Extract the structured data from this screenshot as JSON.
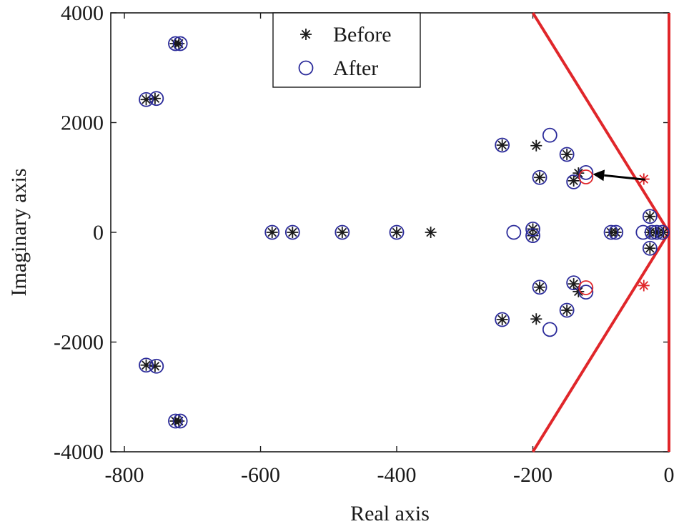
{
  "chart_data": {
    "type": "scatter",
    "xlabel": "Real axis",
    "ylabel": "Imaginary axis",
    "xlim": [
      -820,
      0
    ],
    "ylim": [
      -4000,
      4000
    ],
    "x_ticks": [
      -800,
      -600,
      -400,
      -200,
      0
    ],
    "x_tick_labels": [
      "-800",
      "-600",
      "-400",
      "-200",
      "0"
    ],
    "y_ticks": [
      -4000,
      -2000,
      0,
      2000,
      4000
    ],
    "y_tick_labels": [
      "-4000",
      "-2000",
      "0",
      "2000",
      "4000"
    ],
    "legend": {
      "placement": "top-center",
      "entries": [
        {
          "label": "Before",
          "marker": "asterisk",
          "color": "#1a1a1a"
        },
        {
          "label": "After",
          "marker": "circle",
          "color": "#2b2b9a"
        }
      ]
    },
    "colors": {
      "before": "#1a1a1a",
      "after": "#2b2b9a",
      "highlight": "#e0262a",
      "boundary": "#e0262a",
      "arrow": "#000000"
    },
    "series": [
      {
        "name": "Before",
        "marker": "asterisk",
        "points": [
          [
            -725,
            3440
          ],
          [
            -720,
            3440
          ],
          [
            -768,
            2420
          ],
          [
            -755,
            2440
          ],
          [
            -768,
            -2420
          ],
          [
            -755,
            -2440
          ],
          [
            -725,
            -3440
          ],
          [
            -720,
            -3440
          ],
          [
            -583,
            0
          ],
          [
            -553,
            0
          ],
          [
            -480,
            0
          ],
          [
            -400,
            0
          ],
          [
            -350,
            0
          ],
          [
            -245,
            1590
          ],
          [
            -195,
            1580
          ],
          [
            -190,
            1000
          ],
          [
            -150,
            1420
          ],
          [
            -140,
            940
          ],
          [
            -133,
            1080
          ],
          [
            -245,
            -1590
          ],
          [
            -195,
            -1580
          ],
          [
            -190,
            -1000
          ],
          [
            -150,
            -1420
          ],
          [
            -140,
            -940
          ],
          [
            -133,
            -1080
          ],
          [
            -200,
            60
          ],
          [
            -200,
            -60
          ],
          [
            -85,
            0
          ],
          [
            -78,
            0
          ],
          [
            -28,
            290
          ],
          [
            -28,
            -290
          ],
          [
            -28,
            0
          ],
          [
            -20,
            0
          ],
          [
            -15,
            0
          ],
          [
            -8,
            0
          ]
        ]
      },
      {
        "name": "After",
        "marker": "circle",
        "points": [
          [
            -725,
            3440
          ],
          [
            -718,
            3440
          ],
          [
            -768,
            2420
          ],
          [
            -753,
            2440
          ],
          [
            -768,
            -2420
          ],
          [
            -753,
            -2440
          ],
          [
            -725,
            -3440
          ],
          [
            -718,
            -3440
          ],
          [
            -583,
            0
          ],
          [
            -553,
            0
          ],
          [
            -480,
            0
          ],
          [
            -400,
            0
          ],
          [
            -228,
            0
          ],
          [
            -245,
            1590
          ],
          [
            -175,
            1770
          ],
          [
            -190,
            1000
          ],
          [
            -150,
            1420
          ],
          [
            -140,
            920
          ],
          [
            -122,
            1090
          ],
          [
            -245,
            -1590
          ],
          [
            -175,
            -1770
          ],
          [
            -190,
            -1000
          ],
          [
            -150,
            -1420
          ],
          [
            -140,
            -920
          ],
          [
            -122,
            -1090
          ],
          [
            -200,
            60
          ],
          [
            -200,
            -60
          ],
          [
            -85,
            0
          ],
          [
            -78,
            0
          ],
          [
            -38,
            0
          ],
          [
            -28,
            290
          ],
          [
            -28,
            -290
          ],
          [
            -25,
            0
          ],
          [
            -18,
            0
          ],
          [
            -10,
            0
          ]
        ]
      },
      {
        "name": "Before (highlighted)",
        "marker": "asterisk",
        "color": "#e0262a",
        "points": [
          [
            -37,
            970
          ],
          [
            -37,
            -970
          ]
        ]
      },
      {
        "name": "After (highlighted)",
        "marker": "circle",
        "color": "#e0262a",
        "points": [
          [
            -122,
            1010
          ],
          [
            -122,
            -1010
          ]
        ]
      }
    ],
    "boundary_lines": [
      {
        "from": [
          -200,
          4000
        ],
        "to": [
          0,
          0
        ]
      },
      {
        "from": [
          -200,
          -4000
        ],
        "to": [
          0,
          0
        ]
      },
      {
        "from": [
          0,
          4000
        ],
        "to": [
          0,
          -4000
        ]
      }
    ],
    "arrow": {
      "from": [
        -35,
        960
      ],
      "to": [
        -112,
        1060
      ]
    }
  }
}
